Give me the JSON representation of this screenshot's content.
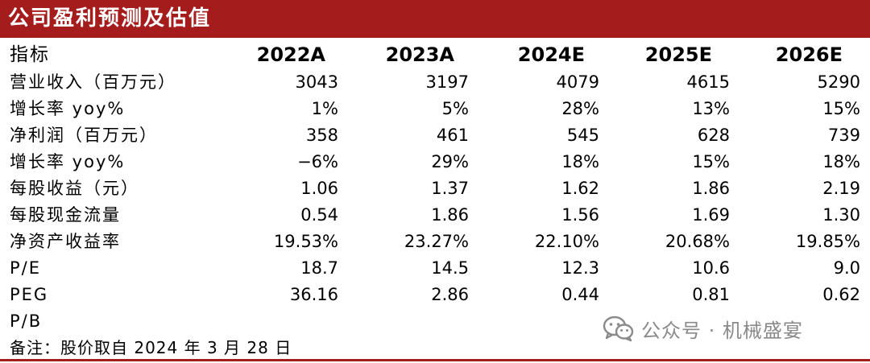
{
  "title": "公司盈利预测及估值",
  "header": {
    "label": "指标",
    "years": [
      "2022A",
      "2023A",
      "2024E",
      "2025E",
      "2026E"
    ]
  },
  "rows": [
    {
      "label": "营业收入（百万元）",
      "values": [
        "3043",
        "3197",
        "4079",
        "4615",
        "5290"
      ]
    },
    {
      "label": "增长率 yoy%",
      "values": [
        "1%",
        "5%",
        "28%",
        "13%",
        "15%"
      ]
    },
    {
      "label": "净利润（百万元）",
      "values": [
        "358",
        "461",
        "545",
        "628",
        "739"
      ]
    },
    {
      "label": "增长率 yoy%",
      "values": [
        "−6%",
        "29%",
        "18%",
        "15%",
        "18%"
      ]
    },
    {
      "label": "每股收益（元）",
      "values": [
        "1.06",
        "1.37",
        "1.62",
        "1.86",
        "2.19"
      ]
    },
    {
      "label": "每股现金流量",
      "values": [
        "0.54",
        "1.86",
        "1.56",
        "1.69",
        "1.30"
      ]
    },
    {
      "label": "净资产收益率",
      "values": [
        "19.53%",
        "23.27%",
        "22.10%",
        "20.68%",
        "19.85%"
      ]
    },
    {
      "label": "P/E",
      "values": [
        "18.7",
        "14.5",
        "12.3",
        "10.6",
        "9.0"
      ]
    },
    {
      "label": "PEG",
      "values": [
        "36.16",
        "2.86",
        "0.44",
        "0.81",
        "0.62"
      ]
    },
    {
      "label": "P/B",
      "values": [
        "",
        "",
        "",
        "",
        ""
      ]
    }
  ],
  "note": "备注：股价取自 2024 年 3 月 28 日",
  "watermark": {
    "text": "公众号 · 机械盛宴",
    "icon": "wechat-icon"
  },
  "colors": {
    "title_bar": "#a51c1c",
    "title_text": "#ffffff",
    "watermark": "#8a8a8a"
  }
}
